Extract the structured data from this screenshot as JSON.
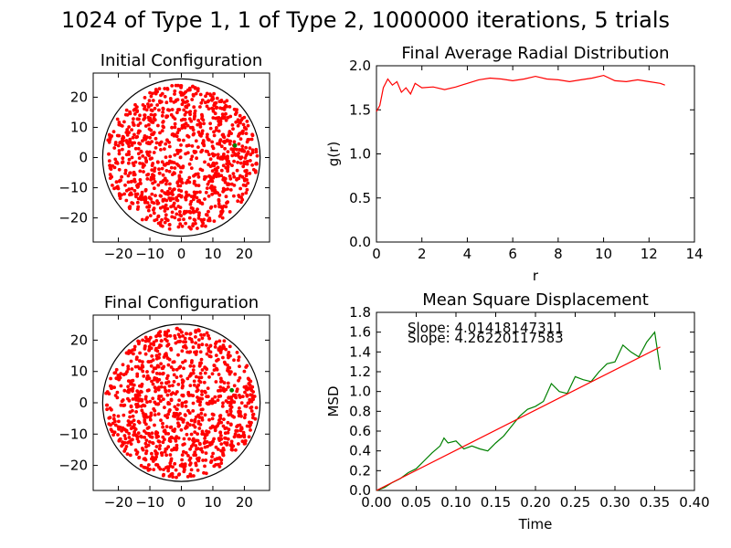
{
  "figure_title": "1024 of Type 1, 1 of Type 2, 1000000 iterations, 5 trials",
  "colors": {
    "type1": "#ff0000",
    "type2": "#008000",
    "boundary": "#000000",
    "fit": "#ff0000",
    "msd": "#008000",
    "gr": "#ff0000"
  },
  "chart_data": [
    {
      "id": "initial",
      "type": "scatter",
      "title": "Initial Configuration",
      "xlabel": "",
      "ylabel": "",
      "xlim": [
        -28,
        28
      ],
      "ylim": [
        -28,
        28
      ],
      "xticks": [
        -20,
        -10,
        0,
        10,
        20
      ],
      "xtick_labels": [
        "−20",
        "−10",
        "0",
        "10",
        "20"
      ],
      "yticks": [
        -20,
        -10,
        0,
        10,
        20
      ],
      "ytick_labels": [
        "−20",
        "−10",
        "0",
        "10",
        "20"
      ],
      "boundary_radius": 25,
      "particles": {
        "type1_count": 1024,
        "type2_count": 1,
        "type2_position": [
          17,
          4
        ]
      }
    },
    {
      "id": "gr",
      "type": "line",
      "title": "Final Average Radial Distribution",
      "xlabel": "r",
      "ylabel": "g(r)",
      "xlim": [
        0,
        14
      ],
      "ylim": [
        0,
        2.0
      ],
      "xticks": [
        0,
        2,
        4,
        6,
        8,
        10,
        12,
        14
      ],
      "xtick_labels": [
        "0",
        "2",
        "4",
        "6",
        "8",
        "10",
        "12",
        "14"
      ],
      "yticks": [
        0,
        0.5,
        1.0,
        1.5,
        2.0
      ],
      "ytick_labels": [
        "0.0",
        "0.5",
        "1.0",
        "1.5",
        "2.0"
      ],
      "grid": false,
      "series": [
        {
          "x": [
            0.0,
            0.15,
            0.3,
            0.5,
            0.7,
            0.9,
            1.1,
            1.3,
            1.5,
            1.7,
            2.0,
            2.5,
            3.0,
            3.5,
            4.0,
            4.5,
            5.0,
            5.5,
            6.0,
            6.5,
            7.0,
            7.5,
            8.0,
            8.5,
            9.0,
            9.5,
            10.0,
            10.5,
            11.0,
            11.5,
            12.0,
            12.5,
            12.7
          ],
          "y": [
            1.48,
            1.55,
            1.75,
            1.85,
            1.78,
            1.82,
            1.7,
            1.75,
            1.68,
            1.8,
            1.75,
            1.76,
            1.73,
            1.76,
            1.8,
            1.84,
            1.86,
            1.85,
            1.83,
            1.85,
            1.88,
            1.85,
            1.84,
            1.82,
            1.84,
            1.86,
            1.89,
            1.83,
            1.82,
            1.84,
            1.82,
            1.8,
            1.78
          ]
        }
      ]
    },
    {
      "id": "final",
      "type": "scatter",
      "title": "Final Configuration",
      "xlabel": "",
      "ylabel": "",
      "xlim": [
        -28,
        28
      ],
      "ylim": [
        -28,
        28
      ],
      "xticks": [
        -20,
        -10,
        0,
        10,
        20
      ],
      "xtick_labels": [
        "−20",
        "−10",
        "0",
        "10",
        "20"
      ],
      "yticks": [
        -20,
        -10,
        0,
        10,
        20
      ],
      "ytick_labels": [
        "−20",
        "−10",
        "0",
        "10",
        "20"
      ],
      "boundary_radius": 25,
      "particles": {
        "type1_count": 1024,
        "type2_count": 1,
        "type2_position": [
          16,
          4
        ]
      }
    },
    {
      "id": "msd",
      "type": "line",
      "title": "Mean Square Displacement",
      "xlabel": "Time",
      "ylabel": "MSD",
      "xlim": [
        0,
        0.4
      ],
      "ylim": [
        0,
        1.8
      ],
      "xticks": [
        0,
        0.05,
        0.1,
        0.15,
        0.2,
        0.25,
        0.3,
        0.35,
        0.4
      ],
      "xtick_labels": [
        "0.00",
        "0.05",
        "0.10",
        "0.15",
        "0.20",
        "0.25",
        "0.30",
        "0.35",
        "0.40"
      ],
      "yticks": [
        0,
        0.2,
        0.4,
        0.6,
        0.8,
        1.0,
        1.2,
        1.4,
        1.6,
        1.8
      ],
      "ytick_labels": [
        "0.0",
        "0.2",
        "0.4",
        "0.6",
        "0.8",
        "1.0",
        "1.2",
        "1.4",
        "1.6",
        "1.8"
      ],
      "grid": false,
      "annotations": [
        "Slope: 4.01418147311",
        "Slope: 4.26220117583"
      ],
      "series": [
        {
          "color": "green",
          "x": [
            0.0,
            0.01,
            0.02,
            0.03,
            0.04,
            0.05,
            0.06,
            0.07,
            0.08,
            0.085,
            0.09,
            0.1,
            0.11,
            0.12,
            0.13,
            0.14,
            0.15,
            0.16,
            0.17,
            0.18,
            0.19,
            0.2,
            0.21,
            0.22,
            0.23,
            0.24,
            0.25,
            0.26,
            0.27,
            0.28,
            0.29,
            0.3,
            0.31,
            0.32,
            0.33,
            0.34,
            0.35,
            0.357
          ],
          "y": [
            0.0,
            0.03,
            0.08,
            0.12,
            0.18,
            0.22,
            0.3,
            0.38,
            0.45,
            0.53,
            0.48,
            0.5,
            0.42,
            0.45,
            0.42,
            0.4,
            0.48,
            0.55,
            0.65,
            0.75,
            0.82,
            0.85,
            0.9,
            1.08,
            1.0,
            0.98,
            1.15,
            1.12,
            1.1,
            1.2,
            1.28,
            1.3,
            1.47,
            1.4,
            1.35,
            1.5,
            1.6,
            1.22
          ]
        },
        {
          "color": "red",
          "x": [
            0.0,
            0.357
          ],
          "y": [
            0.0,
            1.45
          ]
        }
      ]
    }
  ]
}
